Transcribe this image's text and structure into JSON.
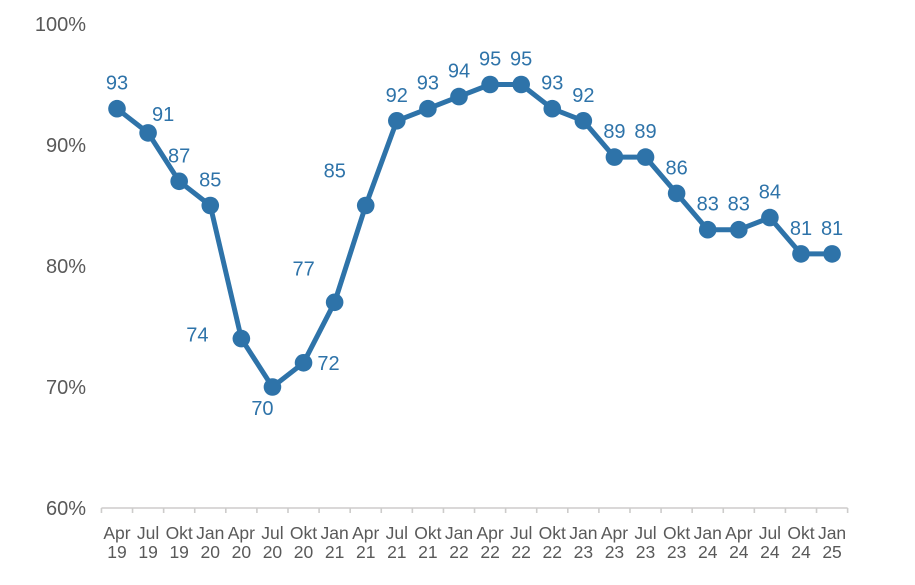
{
  "chart_data": {
    "type": "line",
    "title": "",
    "xlabel": "",
    "ylabel": "",
    "categories": [
      "Apr 19",
      "Jul 19",
      "Okt 19",
      "Jan 20",
      "Apr 20",
      "Jul 20",
      "Okt 20",
      "Jan 21",
      "Apr 21",
      "Jul 21",
      "Okt 21",
      "Jan 22",
      "Apr 22",
      "Jul 22",
      "Okt 22",
      "Jan 23",
      "Apr 23",
      "Jul 23",
      "Okt 23",
      "Jan 24",
      "Apr 24",
      "Jul 24",
      "Okt 24",
      "Jan 25"
    ],
    "series": [
      {
        "name": "share-percent",
        "values": [
          93,
          91,
          87,
          85,
          74,
          70,
          72,
          77,
          85,
          92,
          93,
          94,
          95,
          95,
          93,
          92,
          89,
          89,
          86,
          83,
          83,
          84,
          81,
          81
        ]
      }
    ],
    "data_labels": [
      93,
      91,
      87,
      85,
      74,
      70,
      72,
      77,
      85,
      92,
      93,
      94,
      95,
      95,
      93,
      92,
      89,
      89,
      86,
      83,
      83,
      84,
      81,
      81
    ],
    "y_ticks": [
      {
        "value": 100,
        "label": "100%"
      },
      {
        "value": 90,
        "label": "90%"
      },
      {
        "value": 80,
        "label": "80%"
      },
      {
        "value": 70,
        "label": "70%"
      },
      {
        "value": 60,
        "label": "60%"
      }
    ],
    "ylim": [
      60,
      100
    ],
    "grid": false,
    "legend": "none",
    "label_offsets": {
      "1": [
        15,
        -12
      ],
      "4": [
        -44,
        3
      ],
      "5": [
        -10,
        28
      ],
      "6": [
        25,
        7
      ],
      "7": [
        -31,
        -27
      ],
      "8": [
        -31,
        -28
      ]
    }
  },
  "colors": {
    "line": "#2e73a9",
    "marker": "#2e73a9",
    "data_label": "#2e73a9",
    "axis_text": "#595959",
    "axis_line": "#cdcccb",
    "background": "#ffffff"
  }
}
